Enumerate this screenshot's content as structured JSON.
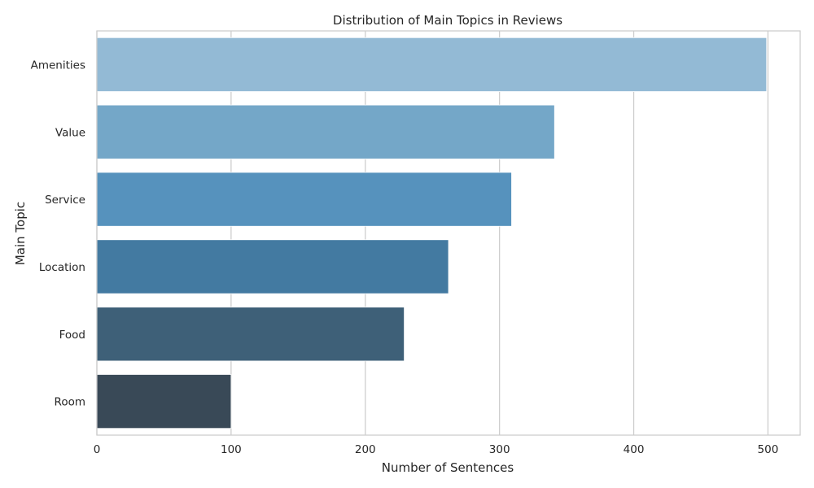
{
  "chart_data": {
    "type": "bar",
    "orientation": "horizontal",
    "title": "Distribution of Main Topics in Reviews",
    "xlabel": "Number of Sentences",
    "ylabel": "Main Topic",
    "categories": [
      "Amenities",
      "Value",
      "Service",
      "Location",
      "Food",
      "Room"
    ],
    "values": [
      499,
      341,
      309,
      262,
      229,
      100
    ],
    "xlim": [
      0,
      524
    ],
    "xticks": [
      0,
      100,
      200,
      300,
      400,
      500
    ],
    "grid": true,
    "colors": [
      "#93bad5",
      "#74a7c8",
      "#5692bd",
      "#437aa1",
      "#3e6078",
      "#394957"
    ]
  }
}
